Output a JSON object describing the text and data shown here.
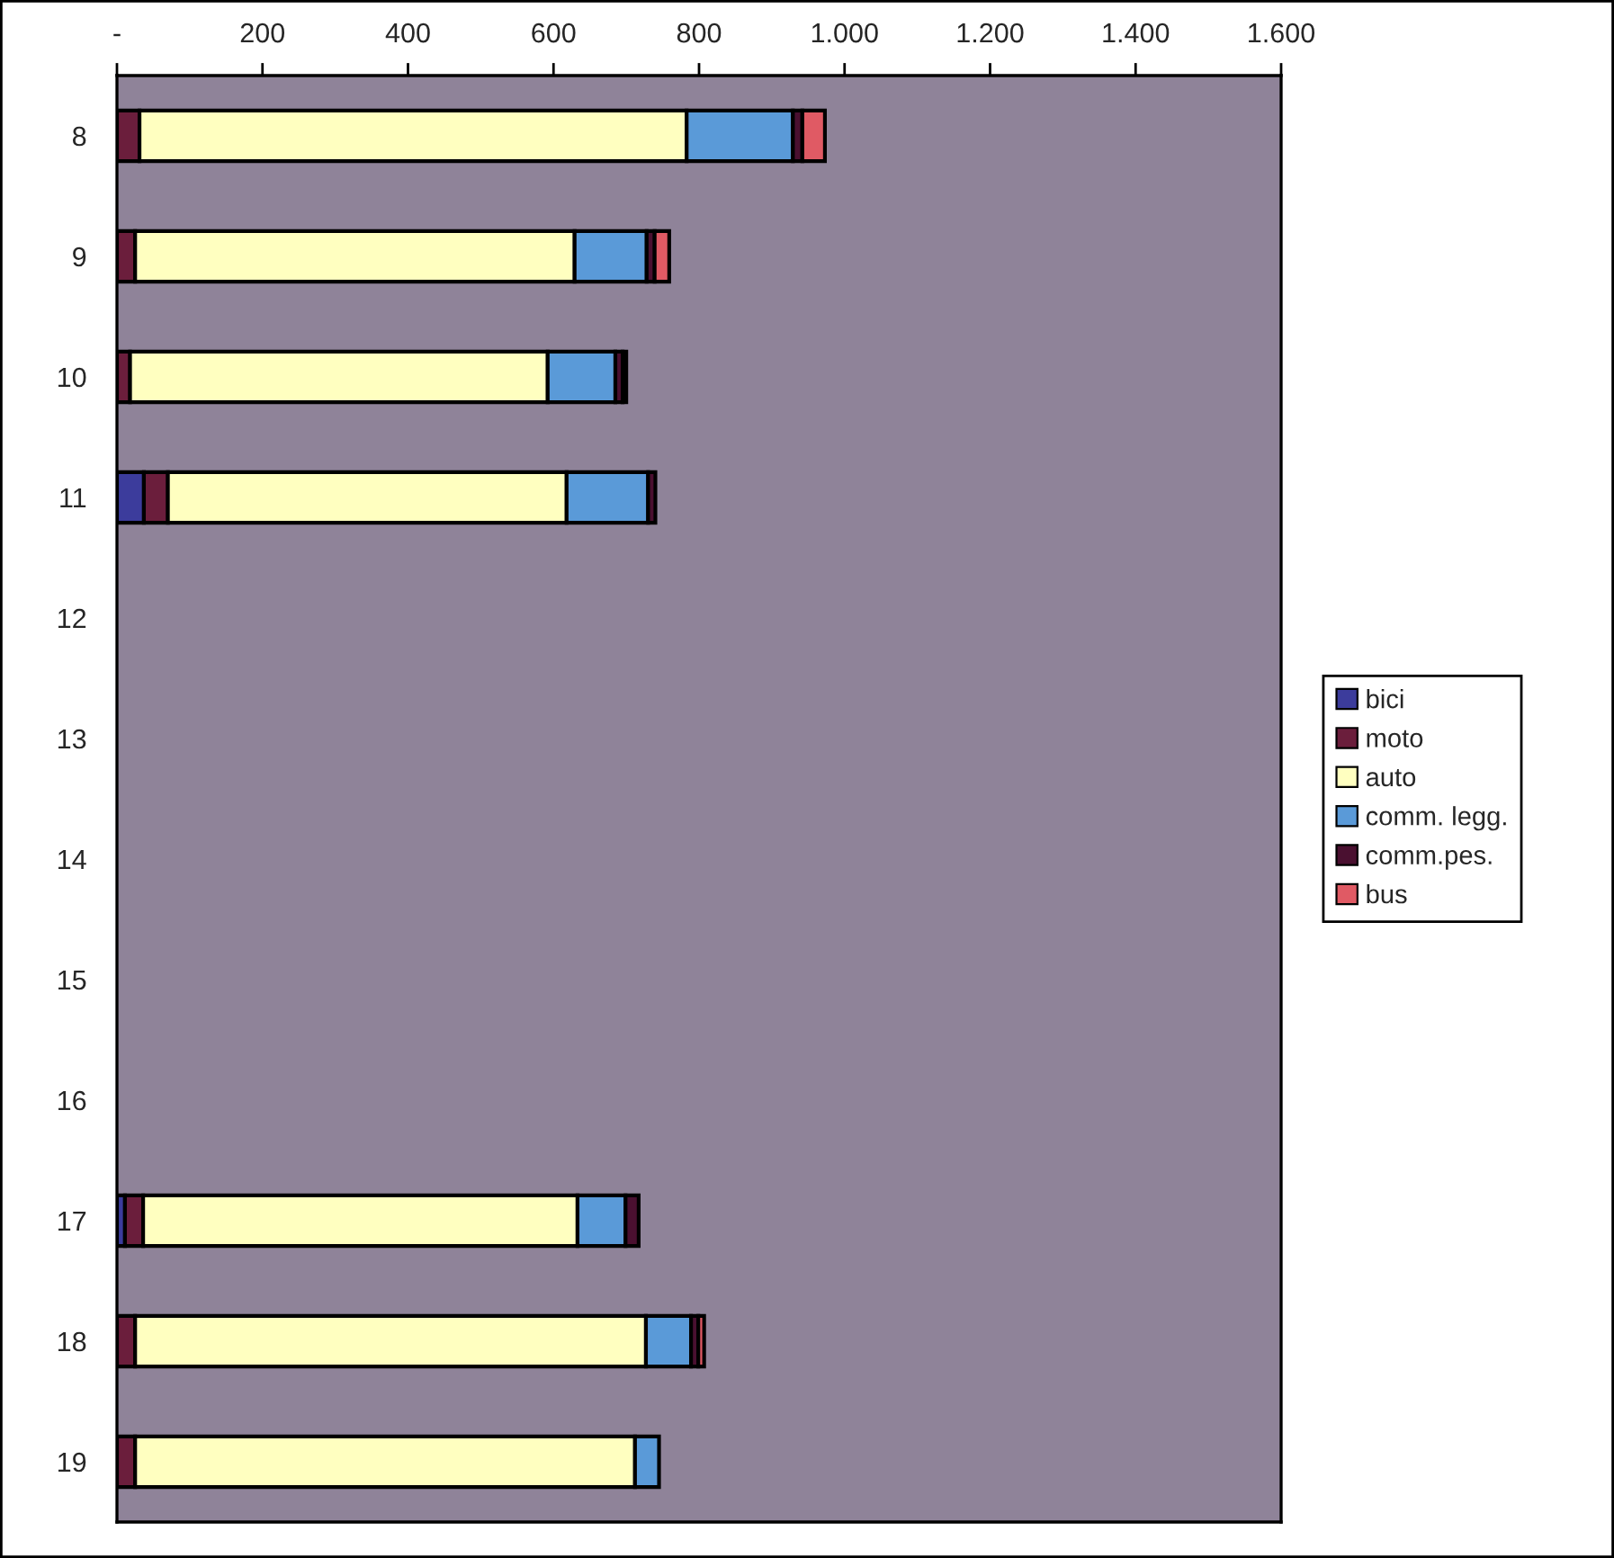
{
  "chart_data": {
    "type": "bar",
    "orientation": "horizontal",
    "stacked": true,
    "categories": [
      "8",
      "9",
      "10",
      "11",
      "12",
      "13",
      "14",
      "15",
      "16",
      "17",
      "18",
      "19"
    ],
    "series": [
      {
        "name": "bici",
        "color": "#3c3c9c",
        "values": [
          null,
          null,
          null,
          37,
          null,
          null,
          null,
          null,
          null,
          11,
          null,
          null
        ]
      },
      {
        "name": "moto",
        "color": "#6b1e3c",
        "values": [
          31,
          25,
          18,
          33,
          null,
          null,
          null,
          null,
          null,
          25,
          25,
          25
        ]
      },
      {
        "name": "auto",
        "color": "#ffffc0",
        "values": [
          752,
          604,
          574,
          548,
          null,
          null,
          null,
          null,
          null,
          597,
          702,
          687
        ]
      },
      {
        "name": "comm. legg.",
        "color": "#5a9ad8",
        "values": [
          146,
          99,
          93,
          112,
          null,
          null,
          null,
          null,
          null,
          66,
          62,
          33
        ]
      },
      {
        "name": "comm.pes.",
        "color": "#4a1030",
        "values": [
          13,
          11,
          10,
          10,
          null,
          null,
          null,
          null,
          null,
          18,
          10,
          null
        ]
      },
      {
        "name": "bus",
        "color": "#e05a64",
        "values": [
          31,
          20,
          5,
          null,
          null,
          null,
          null,
          null,
          null,
          null,
          8,
          null
        ]
      }
    ],
    "xlim": [
      0,
      1600
    ],
    "xticks": [
      {
        "value": 0,
        "label": "-"
      },
      200,
      400,
      600,
      800,
      {
        "value": 1000,
        "label": "1.000"
      },
      {
        "value": 1200,
        "label": "1.200"
      },
      {
        "value": 1400,
        "label": "1.400"
      },
      {
        "value": 1600,
        "label": "1.600"
      }
    ],
    "legend": "right"
  }
}
